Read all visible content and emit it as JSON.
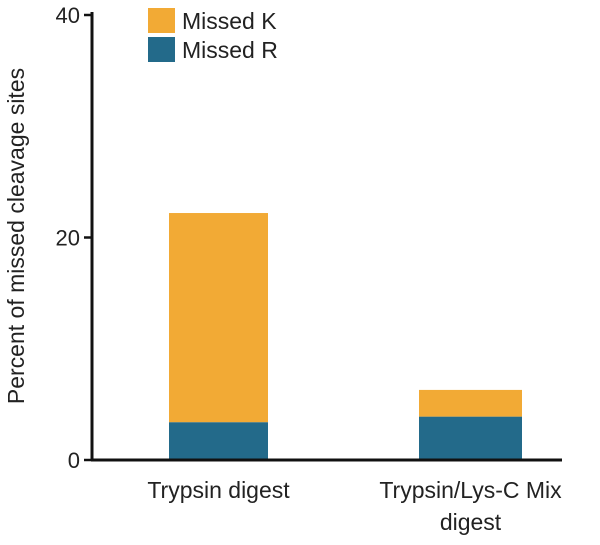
{
  "chart_data": {
    "type": "bar",
    "stacked": true,
    "categories": [
      [
        "Trypsin digest"
      ],
      [
        "Trypsin/Lys-C Mix",
        "digest"
      ]
    ],
    "series": [
      {
        "name": "Missed R",
        "color": "#236A8A",
        "values": [
          3.4,
          3.9
        ]
      },
      {
        "name": "Missed K",
        "color": "#F2AA35",
        "values": [
          18.8,
          2.4
        ]
      }
    ],
    "title": "",
    "xlabel": "",
    "ylabel": "Percent of missed cleavage sites",
    "ylim": [
      0,
      40
    ],
    "yticks": [
      0,
      20,
      40
    ],
    "grid": false,
    "legend": {
      "placement": "top-left",
      "entries": [
        "Missed K",
        "Missed R"
      ]
    }
  }
}
